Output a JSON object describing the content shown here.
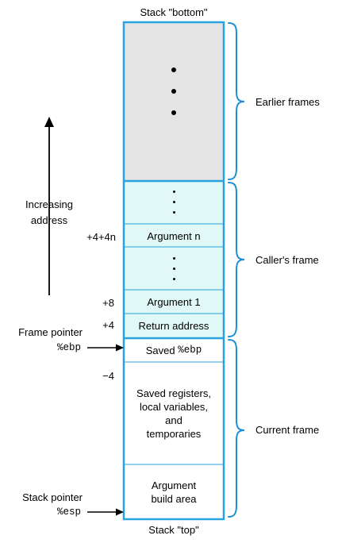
{
  "title_top": "Stack \"bottom\"",
  "title_bottom": "Stack \"top\"",
  "increasing_address": [
    "Increasing",
    "address"
  ],
  "frame_pointer": {
    "label": "Frame pointer",
    "register": "%ebp"
  },
  "stack_pointer": {
    "label": "Stack pointer",
    "register": "%esp"
  },
  "offsets": {
    "arg_n": "+4+4n",
    "arg_1": "+8",
    "return_addr": "+4",
    "saved_regs": "−4"
  },
  "cells": {
    "argument_n": "Argument n",
    "argument_1": "Argument 1",
    "return_address": "Return address",
    "saved_ebp_prefix": "Saved",
    "saved_ebp_reg": "%ebp",
    "saved_registers": [
      "Saved registers,",
      "local variables,",
      "and",
      "temporaries"
    ],
    "argument_build": [
      "Argument",
      "build area"
    ]
  },
  "braces": {
    "earlier": "Earlier frames",
    "caller": "Caller's frame",
    "current": "Current frame"
  },
  "colors": {
    "border": "#29a3e0",
    "earlier_fill": "#e4e4e4",
    "caller_fill": "#e0f8f6",
    "current_fill": "#ffffff"
  }
}
